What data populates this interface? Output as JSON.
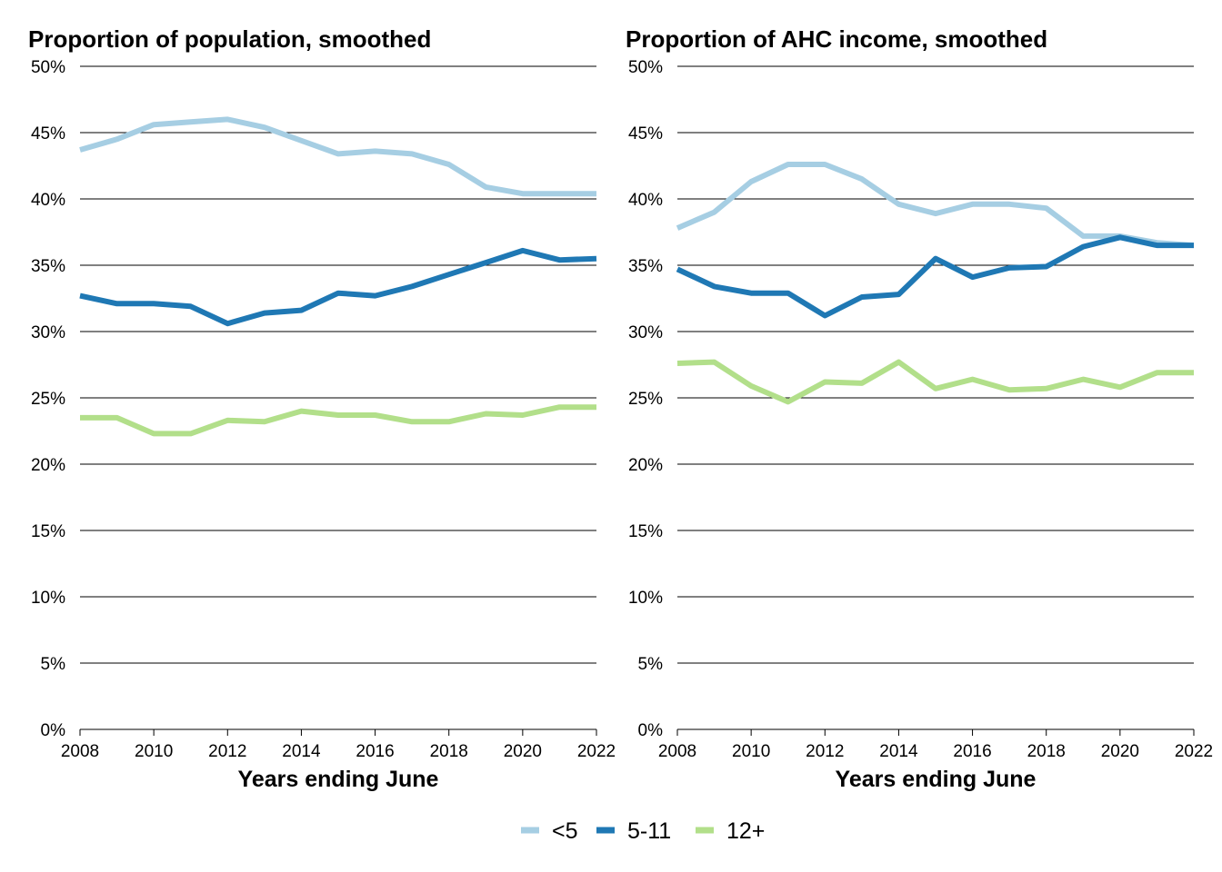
{
  "chart_data": [
    {
      "type": "line",
      "title": "Proportion of population, smoothed",
      "xlabel": "Years ending June",
      "ylabel": "",
      "x": [
        2008,
        2009,
        2010,
        2011,
        2012,
        2013,
        2014,
        2015,
        2016,
        2017,
        2018,
        2019,
        2020,
        2021,
        2022
      ],
      "xlim": [
        2008,
        2022
      ],
      "xticks": [
        "2008",
        "2010",
        "2012",
        "2014",
        "2016",
        "2018",
        "2020",
        "2022"
      ],
      "ylim": [
        0,
        50
      ],
      "yticks": [
        "0%",
        "5%",
        "10%",
        "15%",
        "20%",
        "25%",
        "30%",
        "35%",
        "40%",
        "45%",
        "50%"
      ],
      "grid": "horizontal",
      "series": [
        {
          "name": "<5",
          "color": "#a6cee3",
          "values": [
            43.7,
            44.5,
            45.6,
            45.8,
            46.0,
            45.4,
            44.4,
            43.4,
            43.6,
            43.4,
            42.6,
            40.9,
            40.4,
            40.4,
            40.4
          ]
        },
        {
          "name": "5-11",
          "color": "#1f78b4",
          "values": [
            32.7,
            32.1,
            32.1,
            31.9,
            30.6,
            31.4,
            31.6,
            32.9,
            32.7,
            33.4,
            34.3,
            35.2,
            36.1,
            35.4,
            35.5
          ]
        },
        {
          "name": "12+",
          "color": "#b2df8a",
          "values": [
            23.5,
            23.5,
            22.3,
            22.3,
            23.3,
            23.2,
            24.0,
            23.7,
            23.7,
            23.2,
            23.2,
            23.8,
            23.7,
            24.3,
            24.3
          ]
        }
      ]
    },
    {
      "type": "line",
      "title": "Proportion of AHC income, smoothed",
      "xlabel": "Years ending June",
      "ylabel": "",
      "x": [
        2008,
        2009,
        2010,
        2011,
        2012,
        2013,
        2014,
        2015,
        2016,
        2017,
        2018,
        2019,
        2020,
        2021,
        2022
      ],
      "xlim": [
        2008,
        2022
      ],
      "xticks": [
        "2008",
        "2010",
        "2012",
        "2014",
        "2016",
        "2018",
        "2020",
        "2022"
      ],
      "ylim": [
        0,
        50
      ],
      "yticks": [
        "0%",
        "5%",
        "10%",
        "15%",
        "20%",
        "25%",
        "30%",
        "35%",
        "40%",
        "45%",
        "50%"
      ],
      "grid": "horizontal",
      "series": [
        {
          "name": "<5",
          "color": "#a6cee3",
          "values": [
            37.8,
            39.0,
            41.3,
            42.6,
            42.6,
            41.5,
            39.6,
            38.9,
            39.6,
            39.6,
            39.3,
            37.2,
            37.2,
            36.7,
            36.5
          ]
        },
        {
          "name": "5-11",
          "color": "#1f78b4",
          "values": [
            34.7,
            33.4,
            32.9,
            32.9,
            31.2,
            32.6,
            32.8,
            35.5,
            34.1,
            34.8,
            34.9,
            36.4,
            37.1,
            36.5,
            36.5
          ]
        },
        {
          "name": "12+",
          "color": "#b2df8a",
          "values": [
            27.6,
            27.7,
            25.9,
            24.7,
            26.2,
            26.1,
            27.7,
            25.7,
            26.4,
            25.6,
            25.7,
            26.4,
            25.8,
            26.9,
            26.9
          ]
        }
      ]
    }
  ],
  "legend": {
    "placement": "bottom",
    "items": [
      {
        "label": "<5",
        "color": "#a6cee3"
      },
      {
        "label": "5-11",
        "color": "#1f78b4"
      },
      {
        "label": "12+",
        "color": "#b2df8a"
      }
    ]
  }
}
